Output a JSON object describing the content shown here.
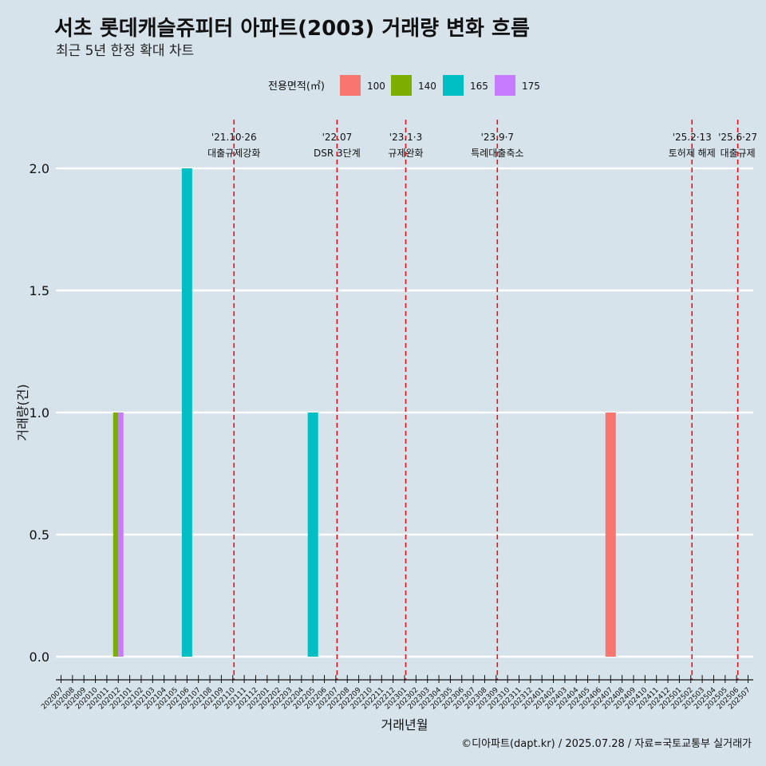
{
  "title": "서초 롯데캐슬쥬피터 아파트(2003) 거래량 변화 흐름",
  "subtitle": "최근 5년 한정 확대 차트",
  "caption": "©디아파트(dapt.kr) / 2025.07.28 / 자료=국토교통부 실거래가",
  "chart_data": {
    "type": "bar",
    "xlabel": "거래년월",
    "ylabel": "거래량(건)",
    "ylim": [
      0,
      2
    ],
    "yticks": [
      "0.0",
      "0.5",
      "1.0",
      "1.5",
      "2.0"
    ],
    "grid": "horizontal",
    "legend": {
      "title": "전용면적(㎡)",
      "position": "top",
      "entries": [
        {
          "label": "100",
          "color": "#f8766d"
        },
        {
          "label": "140",
          "color": "#7cae00"
        },
        {
          "label": "165",
          "color": "#00bfc4"
        },
        {
          "label": "175",
          "color": "#c77cff"
        }
      ]
    },
    "categories": [
      "202007",
      "202008",
      "202009",
      "202010",
      "202011",
      "202012",
      "202101",
      "202102",
      "202103",
      "202104",
      "202105",
      "202106",
      "202107",
      "202108",
      "202109",
      "202110",
      "202111",
      "202112",
      "202201",
      "202202",
      "202203",
      "202204",
      "202205",
      "202206",
      "202207",
      "202208",
      "202209",
      "202210",
      "202211",
      "202212",
      "202301",
      "202302",
      "202303",
      "202304",
      "202305",
      "202306",
      "202307",
      "202308",
      "202309",
      "202310",
      "202311",
      "202312",
      "202401",
      "202402",
      "202403",
      "202404",
      "202405",
      "202406",
      "202407",
      "202408",
      "202409",
      "202410",
      "202411",
      "202412",
      "202501",
      "202502",
      "202503",
      "202504",
      "202505",
      "202506",
      "202507"
    ],
    "bars": [
      {
        "month": "202012",
        "area": "140",
        "value": 1
      },
      {
        "month": "202012",
        "area": "175",
        "value": 1
      },
      {
        "month": "202106",
        "area": "165",
        "value": 2
      },
      {
        "month": "202205",
        "area": "165",
        "value": 1
      },
      {
        "month": "202407",
        "area": "100",
        "value": 1
      }
    ],
    "events": [
      {
        "month": "202110",
        "date": "'21.10·26",
        "label": "대출규제강화"
      },
      {
        "month": "202207",
        "date": "'22.07",
        "label": "DSR 3단계"
      },
      {
        "month": "202301",
        "date": "'23.1·3",
        "label": "규제완화"
      },
      {
        "month": "202309",
        "date": "'23.9·7",
        "label": "특례대출축소"
      },
      {
        "month": "202502",
        "date": "'25.2·13",
        "label": "토허제 해제"
      },
      {
        "month": "202506",
        "date": "'25.6·27",
        "label": "대출규제"
      }
    ]
  }
}
